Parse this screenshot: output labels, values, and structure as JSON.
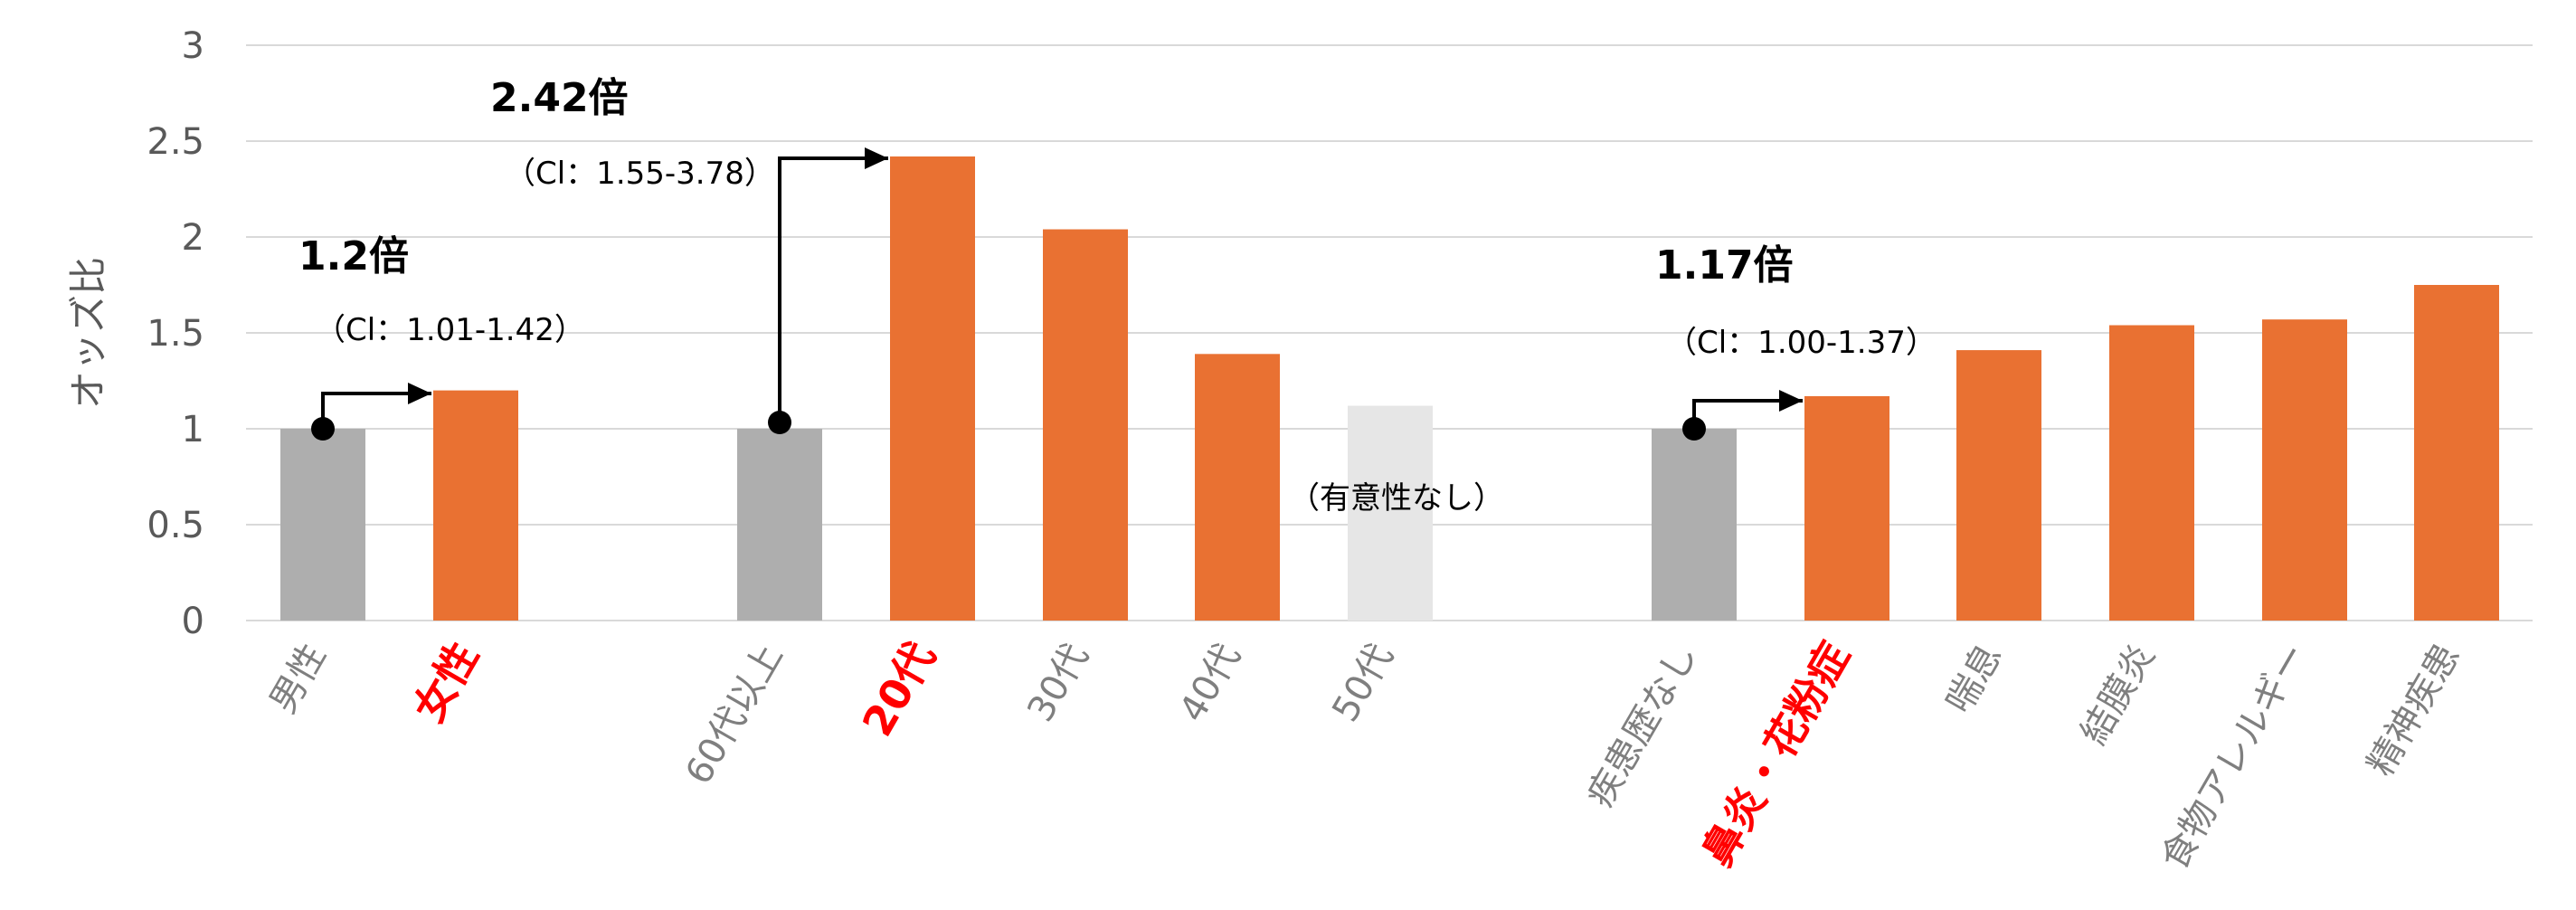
{
  "chart_data": {
    "type": "bar",
    "ylabel": "オッズ比",
    "ylim": [
      0,
      3
    ],
    "yticks": [
      "0",
      "0.5",
      "1",
      "1.5",
      "2",
      "2.5",
      "3"
    ],
    "grid": true,
    "categories": [
      "男性",
      "女性",
      "60代以上",
      "20代",
      "30代",
      "40代",
      "50代",
      "疾患歴なし",
      "鼻炎・花粉症",
      "喘息",
      "結膜炎",
      "食物アレルギー",
      "精神疾患"
    ],
    "values": [
      1.0,
      1.2,
      1.0,
      2.42,
      2.04,
      1.39,
      1.12,
      1.0,
      1.17,
      1.41,
      1.54,
      1.57,
      1.75
    ],
    "highlighted_categories": [
      "女性",
      "20代",
      "鼻炎・花粉症"
    ],
    "bar_roles": [
      "reference",
      "significant",
      "reference",
      "significant",
      "significant",
      "significant",
      "not-significant",
      "reference",
      "significant",
      "significant",
      "significant",
      "significant",
      "significant"
    ],
    "annotations": [
      {
        "from": "男性",
        "to": "女性",
        "odds": "1.2倍",
        "ci": "（Cl：1.01-1.42）"
      },
      {
        "from": "60代以上",
        "to": "20代",
        "odds": "2.42倍",
        "ci": "（Cl：1.55-3.78）"
      },
      {
        "from": "疾患歴なし",
        "to": "鼻炎・花粉症",
        "odds": "1.17倍",
        "ci": "（Cl：1.00-1.37）"
      }
    ],
    "note": "（有意性なし）",
    "colors": {
      "reference": "#aeaeae",
      "significant": "#e97132",
      "not-significant": "#e6e6e6",
      "highlight_text": "#ff0000",
      "grid": "#d9d9d9",
      "axis_text": "#595959"
    }
  }
}
